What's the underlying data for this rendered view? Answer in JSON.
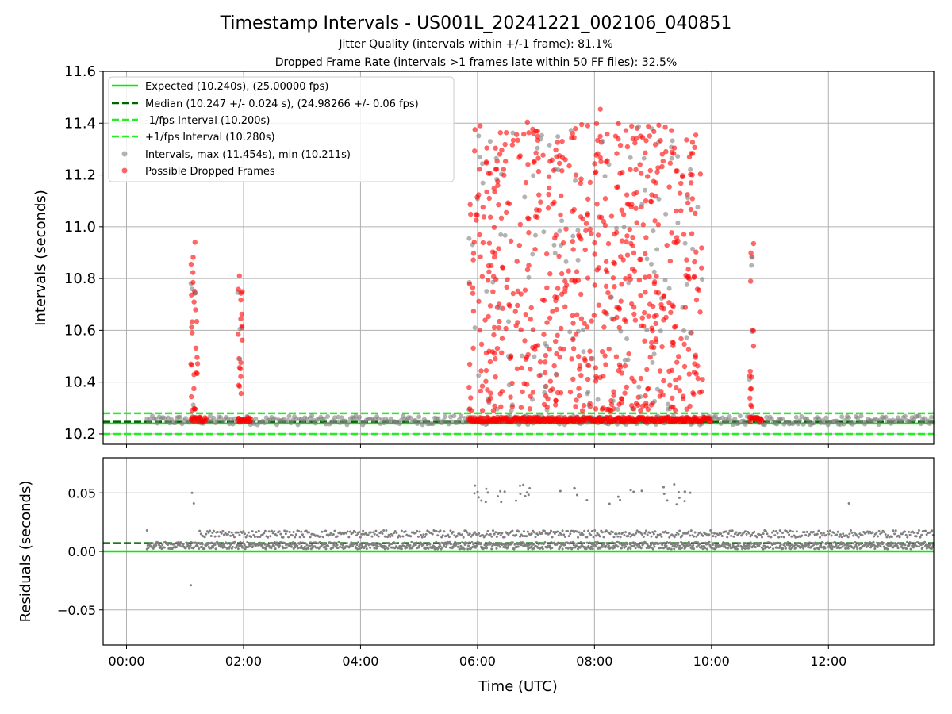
{
  "title": "Timestamp Intervals - US001L_20241221_002106_040851",
  "subtitle_1": "Jitter Quality (intervals within +/-1 frame): 81.1%",
  "subtitle_2": "Dropped Frame Rate (intervals >1 frames late within 50 FF files): 32.5%",
  "colors": {
    "expected": "#00ee00",
    "median": "#006400",
    "fps_bounds": "#22ee22",
    "intervals": "#808080",
    "dropped": "#ff0000",
    "grid": "#b0b0b0"
  },
  "chart_data": [
    {
      "type": "scatter",
      "name": "intervals",
      "ylabel": "Intervals (seconds)",
      "ylim": [
        10.16,
        11.6
      ],
      "yticks": [
        "10.2",
        "10.4",
        "10.6",
        "10.8",
        "11.0",
        "11.2",
        "11.4",
        "11.6"
      ],
      "xlim_hours": [
        -0.4,
        13.8
      ],
      "grid": true,
      "legend_position": "upper-left",
      "reference_lines": [
        {
          "label": "Expected (10.240s), (25.00000 fps)",
          "y": 10.24,
          "style": "solid",
          "color": "#00ee00"
        },
        {
          "label": "Median (10.247 +/- 0.024 s), (24.98266 +/- 0.06 fps)",
          "y": 10.247,
          "style": "dashed",
          "color": "#006400"
        },
        {
          "label": "-1/fps Interval (10.200s)",
          "y": 10.2,
          "style": "dashed",
          "color": "#22ee22"
        },
        {
          "label": "+1/fps Interval (10.280s)",
          "y": 10.28,
          "style": "dashed",
          "color": "#22ee22"
        }
      ],
      "series": [
        {
          "label": "Intervals, max (11.454s), min (10.211s)",
          "color": "#808080",
          "max": 11.454,
          "min": 10.211
        },
        {
          "label": "Possible Dropped Frames",
          "color": "#ff0000"
        }
      ],
      "clusters": [
        {
          "start_h": 1.1,
          "end_h": 1.22,
          "ymax": 10.94
        },
        {
          "start_h": 1.9,
          "end_h": 1.98,
          "ymax": 10.81
        },
        {
          "start_h": 5.85,
          "end_h": 9.85,
          "ymax": 11.45
        },
        {
          "start_h": 10.65,
          "end_h": 10.72,
          "ymax": 10.94
        }
      ],
      "highlighted_points": [
        {
          "x_h": 8.1,
          "y": 11.454
        },
        {
          "x_h": 6.15,
          "y": 11.25
        },
        {
          "x_h": 7.4,
          "y": 11.245
        },
        {
          "x_h": 8.2,
          "y": 11.25
        },
        {
          "x_h": 9.05,
          "y": 11.17
        },
        {
          "x_h": 1.17,
          "y": 10.94
        },
        {
          "x_h": 10.72,
          "y": 10.935
        },
        {
          "x_h": 1.93,
          "y": 10.81
        }
      ]
    },
    {
      "type": "scatter",
      "name": "residuals",
      "xlabel": "Time (UTC)",
      "ylabel": "Residuals (seconds)",
      "ylim": [
        -0.08,
        0.08
      ],
      "yticks": [
        "−0.05",
        "0.00",
        "0.05"
      ],
      "ytick_values": [
        -0.05,
        0,
        0.05
      ],
      "xticks": [
        "00:00",
        "02:00",
        "04:00",
        "06:00",
        "08:00",
        "10:00",
        "12:00"
      ],
      "xtick_values_hours": [
        0,
        2,
        4,
        6,
        8,
        10,
        12
      ],
      "grid": true,
      "reference_lines": [
        {
          "y": 0.0,
          "style": "solid",
          "color": "#00ee00"
        },
        {
          "y": 0.007,
          "style": "dashed",
          "color": "#006400"
        }
      ],
      "outliers": [
        {
          "x_h": 0.35,
          "y": 0.018
        },
        {
          "x_h": 1.1,
          "y": -0.029
        },
        {
          "x_h": 1.12,
          "y": 0.05
        },
        {
          "x_h": 1.15,
          "y": 0.041
        },
        {
          "x_h": 12.35,
          "y": 0.041
        }
      ]
    }
  ]
}
